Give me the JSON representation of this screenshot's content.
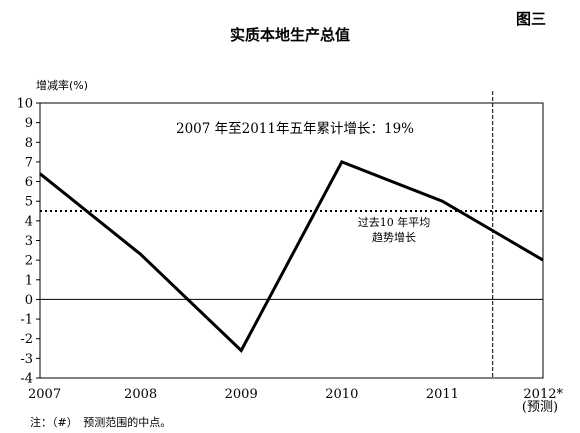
{
  "figure_label": "图三",
  "footnote": "注：（#）　预测范围的中点。",
  "chart_data": {
    "type": "line",
    "title": "实质本地生产总值",
    "ylabel": "增减率(%)",
    "xlabel": "",
    "categories": [
      "2007",
      "2008",
      "2009",
      "2010",
      "2011",
      "2012*"
    ],
    "forecast_note": "(预测)",
    "series": [
      {
        "values": [
          6.4,
          2.3,
          -2.6,
          7.0,
          5.0,
          2.0
        ],
        "color": "#000000"
      }
    ],
    "ylim": [
      -4,
      10
    ],
    "yticks": [
      -4,
      -3,
      -2,
      -1,
      0,
      1,
      2,
      3,
      4,
      5,
      6,
      7,
      8,
      9,
      10
    ],
    "trend": {
      "value": 4.5,
      "label_line1": "过去10 年平均",
      "label_line2": "趋势增长"
    },
    "forecast_divider_x": 2011.5,
    "annotation": "2007 年至2011年五年累计增长：19%",
    "grid": false
  }
}
